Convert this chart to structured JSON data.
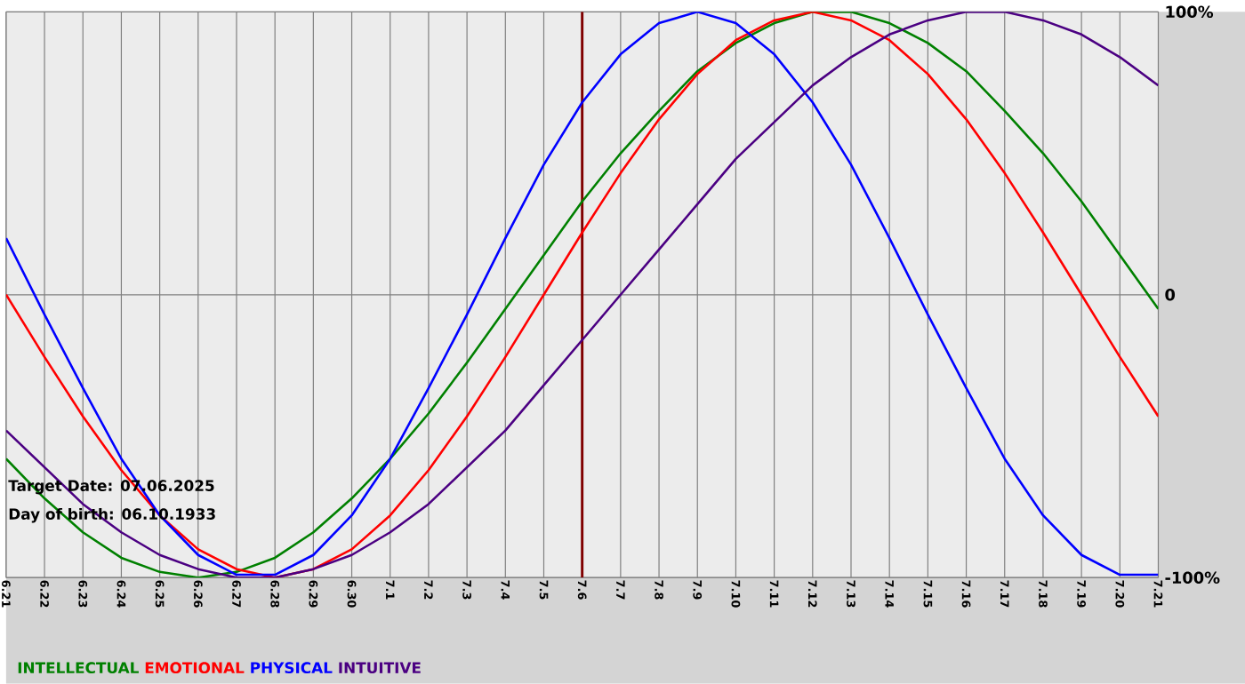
{
  "chart_data": {
    "type": "line",
    "categories": [
      "6.21",
      "6.22",
      "6.23",
      "6.24",
      "6.25",
      "6.26",
      "6.27",
      "6.28",
      "6.29",
      "6.30",
      "7.1",
      "7.2",
      "7.3",
      "7.4",
      "7.5",
      "7.6",
      "7.7",
      "7.8",
      "7.9",
      "7.10",
      "7.11",
      "7.12",
      "7.13",
      "7.14",
      "7.15",
      "7.16",
      "7.17",
      "7.18",
      "7.19",
      "7.20",
      "7.21"
    ],
    "series": [
      {
        "name": "INTELLECTUAL",
        "color": "#008000",
        "values": [
          -58,
          -72,
          -84,
          -93,
          -98,
          -100,
          -98,
          -93,
          -84,
          -72,
          -58,
          -42,
          -24,
          -5,
          14,
          33,
          50,
          65,
          79,
          89,
          96,
          100,
          100,
          96,
          89,
          79,
          65,
          50,
          33,
          14,
          -5
        ]
      },
      {
        "name": "EMOTIONAL",
        "color": "#ff0000",
        "values": [
          0,
          -22,
          -43,
          -62,
          -78,
          -90,
          -97,
          -100,
          -97,
          -90,
          -78,
          -62,
          -43,
          -22,
          0,
          22,
          43,
          62,
          78,
          90,
          97,
          100,
          97,
          90,
          78,
          62,
          43,
          22,
          0,
          -22,
          -43
        ]
      },
      {
        "name": "PHYSICAL",
        "color": "#0000ff",
        "values": [
          20,
          -7,
          -33,
          -58,
          -78,
          -92,
          -99,
          -99,
          -92,
          -78,
          -58,
          -33,
          -7,
          20,
          46,
          68,
          85,
          96,
          100,
          96,
          85,
          68,
          46,
          20,
          -7,
          -33,
          -58,
          -78,
          -92,
          -99,
          -99
        ]
      },
      {
        "name": "INTUITIVE",
        "color": "#4b0082",
        "values": [
          -48,
          -61,
          -74,
          -84,
          -92,
          -97,
          -100,
          -100,
          -97,
          -92,
          -84,
          -74,
          -61,
          -48,
          -32,
          -16,
          0,
          16,
          32,
          48,
          61,
          74,
          84,
          92,
          97,
          100,
          100,
          97,
          92,
          84,
          74
        ]
      }
    ],
    "ylim": [
      -100,
      100
    ],
    "yticks": [
      {
        "value": 100,
        "label": "100%"
      },
      0,
      {
        "value": -100,
        "label": "-100%"
      }
    ],
    "grid": true,
    "legend": "bottom left",
    "marker": "none",
    "line_style": "solid",
    "ref_lines": [
      {
        "axis": "x",
        "value": "7.6",
        "color": "#800000"
      }
    ],
    "annotations": [
      "Target Date: 07.06.2025",
      "Day of birth: 06.10.1933"
    ]
  }
}
